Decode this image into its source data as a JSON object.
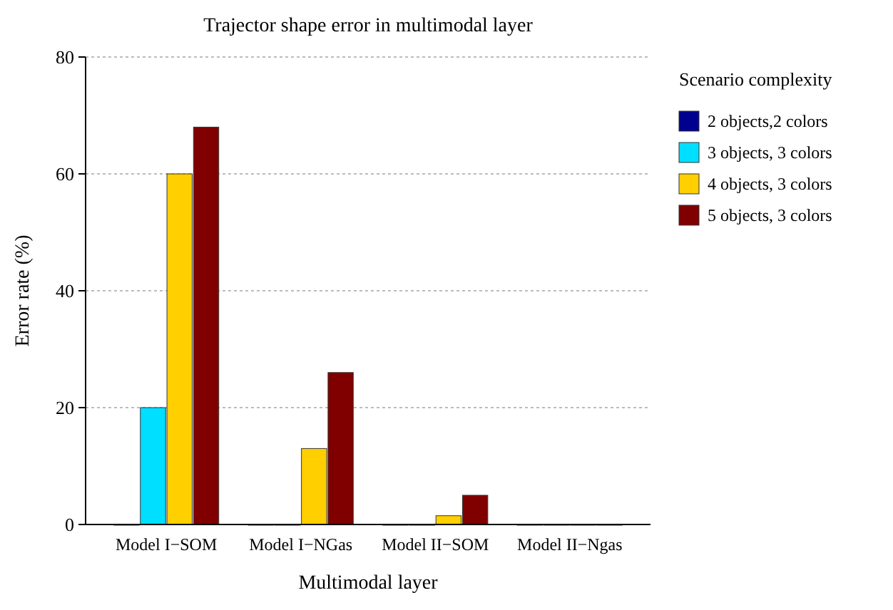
{
  "chart_data": {
    "type": "bar",
    "title": "Trajector shape error in multimodal layer",
    "xlabel": "Multimodal layer",
    "ylabel": "Error rate (%)",
    "legend_title": "Scenario complexity",
    "categories": [
      "Model I−SOM",
      "Model I−NGas",
      "Model II−SOM",
      "Model II−Ngas"
    ],
    "series": [
      {
        "name": "2 objects,2 colors",
        "color": "#00008f",
        "values": [
          0,
          0,
          0,
          0
        ]
      },
      {
        "name": "3 objects, 3 colors",
        "color": "#00dfff",
        "values": [
          20,
          0,
          0,
          0
        ]
      },
      {
        "name": "4 objects, 3 colors",
        "color": "#ffcf00",
        "values": [
          60,
          13,
          1.5,
          0
        ]
      },
      {
        "name": "5 objects, 3 colors",
        "color": "#800000",
        "values": [
          68,
          26,
          5,
          0
        ]
      }
    ],
    "ylim": [
      0,
      80
    ],
    "yticks": [
      0,
      20,
      40,
      60,
      80
    ],
    "grid": "y",
    "legend": "right"
  }
}
